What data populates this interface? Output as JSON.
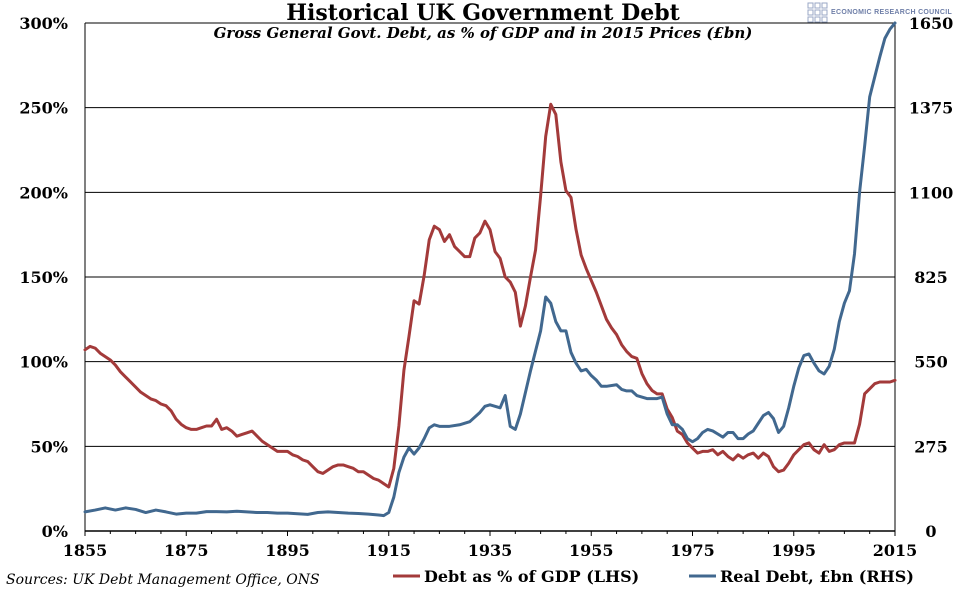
{
  "brand": {
    "name": "ECONOMIC RESEARCH COUNCIL"
  },
  "colors": {
    "debt_pct": "#a33a3a",
    "real_debt": "#41688f",
    "grid": "#000000",
    "brand": "#6f7fa8"
  },
  "chart_data": {
    "type": "line",
    "title": "Historical UK Government Debt",
    "subtitle": "Gross General Govt. Debt, as % of GDP and in 2015 Prices (£bn)",
    "source": "Sources: UK Debt Management Office, ONS",
    "xlim": [
      1855,
      2015
    ],
    "x_ticks": [
      "1855",
      "1875",
      "1895",
      "1915",
      "1935",
      "1955",
      "1975",
      "1995",
      "2015"
    ],
    "y_left": {
      "lim": [
        0,
        300
      ],
      "ticks": [
        "0%",
        "50%",
        "100%",
        "150%",
        "200%",
        "250%",
        "300%"
      ]
    },
    "y_right": {
      "lim": [
        0,
        1650
      ],
      "ticks": [
        "0",
        "275",
        "550",
        "825",
        "1100",
        "1375",
        "1650"
      ]
    },
    "grid": "horizontal",
    "legend_position": "bottom",
    "series": [
      {
        "name": "Debt as % of GDP (LHS)",
        "axis": "left",
        "color": "#a33a3a",
        "points": [
          [
            1855,
            107
          ],
          [
            1856,
            109
          ],
          [
            1857,
            108
          ],
          [
            1858,
            105
          ],
          [
            1859,
            103
          ],
          [
            1860,
            101
          ],
          [
            1861,
            98
          ],
          [
            1862,
            94
          ],
          [
            1863,
            91
          ],
          [
            1864,
            88
          ],
          [
            1865,
            85
          ],
          [
            1866,
            82
          ],
          [
            1867,
            80
          ],
          [
            1868,
            78
          ],
          [
            1869,
            77
          ],
          [
            1870,
            75
          ],
          [
            1871,
            74
          ],
          [
            1872,
            71
          ],
          [
            1873,
            66
          ],
          [
            1874,
            63
          ],
          [
            1875,
            61
          ],
          [
            1876,
            60
          ],
          [
            1877,
            60
          ],
          [
            1878,
            61
          ],
          [
            1879,
            62
          ],
          [
            1880,
            62
          ],
          [
            1881,
            66
          ],
          [
            1882,
            60
          ],
          [
            1883,
            61
          ],
          [
            1884,
            59
          ],
          [
            1885,
            56
          ],
          [
            1886,
            57
          ],
          [
            1887,
            58
          ],
          [
            1888,
            59
          ],
          [
            1889,
            56
          ],
          [
            1890,
            53
          ],
          [
            1891,
            51
          ],
          [
            1892,
            49
          ],
          [
            1893,
            47
          ],
          [
            1894,
            47
          ],
          [
            1895,
            47
          ],
          [
            1896,
            45
          ],
          [
            1897,
            44
          ],
          [
            1898,
            42
          ],
          [
            1899,
            41
          ],
          [
            1900,
            38
          ],
          [
            1901,
            35
          ],
          [
            1902,
            34
          ],
          [
            1903,
            36
          ],
          [
            1904,
            38
          ],
          [
            1905,
            39
          ],
          [
            1906,
            39
          ],
          [
            1907,
            38
          ],
          [
            1908,
            37
          ],
          [
            1909,
            35
          ],
          [
            1910,
            35
          ],
          [
            1911,
            33
          ],
          [
            1912,
            31
          ],
          [
            1913,
            30
          ],
          [
            1914,
            28
          ],
          [
            1915,
            26
          ],
          [
            1916,
            37
          ],
          [
            1917,
            62
          ],
          [
            1918,
            95
          ],
          [
            1919,
            115
          ],
          [
            1920,
            136
          ],
          [
            1921,
            134
          ],
          [
            1922,
            151
          ],
          [
            1923,
            172
          ],
          [
            1924,
            180
          ],
          [
            1925,
            178
          ],
          [
            1926,
            171
          ],
          [
            1927,
            175
          ],
          [
            1928,
            168
          ],
          [
            1929,
            165
          ],
          [
            1930,
            162
          ],
          [
            1931,
            162
          ],
          [
            1932,
            173
          ],
          [
            1933,
            176
          ],
          [
            1934,
            183
          ],
          [
            1935,
            178
          ],
          [
            1936,
            165
          ],
          [
            1937,
            161
          ],
          [
            1938,
            150
          ],
          [
            1939,
            147
          ],
          [
            1940,
            141
          ],
          [
            1941,
            121
          ],
          [
            1942,
            133
          ],
          [
            1943,
            150
          ],
          [
            1944,
            166
          ],
          [
            1945,
            198
          ],
          [
            1946,
            233
          ],
          [
            1947,
            252
          ],
          [
            1948,
            246
          ],
          [
            1949,
            218
          ],
          [
            1950,
            201
          ],
          [
            1951,
            197
          ],
          [
            1952,
            178
          ],
          [
            1953,
            163
          ],
          [
            1954,
            155
          ],
          [
            1955,
            148
          ],
          [
            1956,
            141
          ],
          [
            1957,
            133
          ],
          [
            1958,
            125
          ],
          [
            1959,
            120
          ],
          [
            1960,
            116
          ],
          [
            1961,
            110
          ],
          [
            1962,
            106
          ],
          [
            1963,
            103
          ],
          [
            1964,
            102
          ],
          [
            1965,
            93
          ],
          [
            1966,
            87
          ],
          [
            1967,
            83
          ],
          [
            1968,
            81
          ],
          [
            1969,
            81
          ],
          [
            1970,
            72
          ],
          [
            1971,
            67
          ],
          [
            1972,
            59
          ],
          [
            1973,
            57
          ],
          [
            1974,
            52
          ],
          [
            1975,
            49
          ],
          [
            1976,
            46
          ],
          [
            1977,
            47
          ],
          [
            1978,
            47
          ],
          [
            1979,
            48
          ],
          [
            1980,
            45
          ],
          [
            1981,
            47
          ],
          [
            1982,
            44
          ],
          [
            1983,
            42
          ],
          [
            1984,
            45
          ],
          [
            1985,
            43
          ],
          [
            1986,
            45
          ],
          [
            1987,
            46
          ],
          [
            1988,
            43
          ],
          [
            1989,
            46
          ],
          [
            1990,
            44
          ],
          [
            1991,
            38
          ],
          [
            1992,
            35
          ],
          [
            1993,
            36
          ],
          [
            1994,
            40
          ],
          [
            1995,
            45
          ],
          [
            1996,
            48
          ],
          [
            1997,
            51
          ],
          [
            1998,
            52
          ],
          [
            1999,
            48
          ],
          [
            2000,
            46
          ],
          [
            2001,
            51
          ],
          [
            2002,
            47
          ],
          [
            2003,
            48
          ],
          [
            2004,
            51
          ],
          [
            2005,
            52
          ],
          [
            2006,
            52
          ],
          [
            2007,
            52
          ],
          [
            2008,
            63
          ],
          [
            2009,
            81
          ],
          [
            2010,
            84
          ],
          [
            2011,
            87
          ],
          [
            2012,
            88
          ],
          [
            2013,
            88
          ],
          [
            2014,
            88
          ],
          [
            2015,
            89
          ]
        ]
      },
      {
        "name": "Real Debt, £bn (RHS)",
        "axis": "right",
        "color": "#41688f",
        "points": [
          [
            1855,
            62
          ],
          [
            1857,
            68
          ],
          [
            1859,
            75
          ],
          [
            1861,
            68
          ],
          [
            1863,
            75
          ],
          [
            1865,
            70
          ],
          [
            1867,
            60
          ],
          [
            1869,
            68
          ],
          [
            1871,
            62
          ],
          [
            1873,
            55
          ],
          [
            1875,
            58
          ],
          [
            1877,
            58
          ],
          [
            1879,
            63
          ],
          [
            1881,
            63
          ],
          [
            1883,
            62
          ],
          [
            1885,
            64
          ],
          [
            1887,
            62
          ],
          [
            1889,
            60
          ],
          [
            1891,
            60
          ],
          [
            1893,
            58
          ],
          [
            1895,
            58
          ],
          [
            1897,
            56
          ],
          [
            1899,
            54
          ],
          [
            1901,
            60
          ],
          [
            1903,
            62
          ],
          [
            1905,
            60
          ],
          [
            1907,
            58
          ],
          [
            1909,
            57
          ],
          [
            1911,
            55
          ],
          [
            1913,
            52
          ],
          [
            1914,
            50
          ],
          [
            1915,
            60
          ],
          [
            1916,
            110
          ],
          [
            1917,
            190
          ],
          [
            1918,
            240
          ],
          [
            1919,
            270
          ],
          [
            1920,
            250
          ],
          [
            1921,
            270
          ],
          [
            1922,
            300
          ],
          [
            1923,
            335
          ],
          [
            1924,
            345
          ],
          [
            1925,
            340
          ],
          [
            1927,
            340
          ],
          [
            1929,
            345
          ],
          [
            1931,
            355
          ],
          [
            1933,
            385
          ],
          [
            1934,
            405
          ],
          [
            1935,
            410
          ],
          [
            1937,
            400
          ],
          [
            1938,
            440
          ],
          [
            1939,
            340
          ],
          [
            1940,
            330
          ],
          [
            1941,
            380
          ],
          [
            1943,
            520
          ],
          [
            1945,
            650
          ],
          [
            1946,
            760
          ],
          [
            1947,
            740
          ],
          [
            1948,
            680
          ],
          [
            1949,
            650
          ],
          [
            1950,
            650
          ],
          [
            1951,
            580
          ],
          [
            1952,
            545
          ],
          [
            1953,
            520
          ],
          [
            1954,
            525
          ],
          [
            1955,
            505
          ],
          [
            1956,
            490
          ],
          [
            1957,
            470
          ],
          [
            1958,
            470
          ],
          [
            1960,
            475
          ],
          [
            1961,
            460
          ],
          [
            1962,
            455
          ],
          [
            1963,
            455
          ],
          [
            1964,
            440
          ],
          [
            1966,
            430
          ],
          [
            1968,
            430
          ],
          [
            1969,
            435
          ],
          [
            1970,
            380
          ],
          [
            1971,
            345
          ],
          [
            1972,
            345
          ],
          [
            1973,
            330
          ],
          [
            1974,
            300
          ],
          [
            1975,
            290
          ],
          [
            1976,
            300
          ],
          [
            1977,
            320
          ],
          [
            1978,
            330
          ],
          [
            1979,
            325
          ],
          [
            1980,
            315
          ],
          [
            1981,
            305
          ],
          [
            1982,
            320
          ],
          [
            1983,
            320
          ],
          [
            1984,
            300
          ],
          [
            1985,
            300
          ],
          [
            1986,
            315
          ],
          [
            1987,
            325
          ],
          [
            1988,
            350
          ],
          [
            1989,
            375
          ],
          [
            1990,
            385
          ],
          [
            1991,
            365
          ],
          [
            1992,
            320
          ],
          [
            1993,
            340
          ],
          [
            1994,
            400
          ],
          [
            1995,
            470
          ],
          [
            1996,
            530
          ],
          [
            1997,
            570
          ],
          [
            1998,
            575
          ],
          [
            1999,
            545
          ],
          [
            2000,
            520
          ],
          [
            2001,
            510
          ],
          [
            2002,
            535
          ],
          [
            2003,
            590
          ],
          [
            2004,
            680
          ],
          [
            2005,
            740
          ],
          [
            2006,
            780
          ],
          [
            2007,
            900
          ],
          [
            2008,
            1100
          ],
          [
            2009,
            1250
          ],
          [
            2010,
            1410
          ],
          [
            2011,
            1475
          ],
          [
            2012,
            1540
          ],
          [
            2013,
            1600
          ],
          [
            2014,
            1630
          ],
          [
            2015,
            1650
          ]
        ]
      }
    ]
  }
}
